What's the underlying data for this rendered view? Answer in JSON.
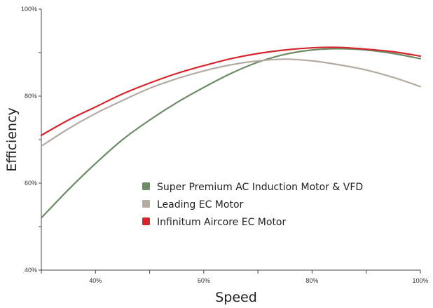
{
  "chart_data": {
    "type": "line",
    "xlabel": "Speed",
    "ylabel": "Efficiency",
    "xlim": [
      30,
      100
    ],
    "ylim": [
      40,
      100
    ],
    "x_ticks": [
      40,
      60,
      80,
      100
    ],
    "x_tick_labels": [
      "40%",
      "60%",
      "80%",
      "100%"
    ],
    "y_ticks": [
      40,
      60,
      80,
      100
    ],
    "y_tick_labels": [
      "40%",
      "60%",
      "80%",
      "100%"
    ],
    "grid": false,
    "legend_position": "center-right",
    "series": [
      {
        "name": "Super Premium AC Induction Motor & VFD",
        "color": "#6d8c66",
        "x": [
          30,
          35,
          40,
          45,
          50,
          55,
          60,
          65,
          70,
          75,
          80,
          85,
          90,
          95,
          100
        ],
        "y": [
          52,
          58.5,
          64.5,
          70,
          74.5,
          78.5,
          82,
          85.2,
          87.8,
          89.6,
          90.6,
          90.9,
          90.6,
          89.8,
          88.6
        ]
      },
      {
        "name": "Leading EC Motor",
        "color": "#b4aca3",
        "x": [
          30,
          35,
          40,
          45,
          50,
          55,
          60,
          65,
          70,
          75,
          80,
          85,
          90,
          95,
          100
        ],
        "y": [
          68.5,
          72.5,
          76,
          79,
          81.8,
          84,
          85.8,
          87.2,
          88.1,
          88.5,
          88.1,
          87.2,
          86,
          84.3,
          82.2
        ]
      },
      {
        "name": "Infinitum Aircore EC Motor",
        "color": "#d7262b",
        "x": [
          30,
          35,
          40,
          45,
          50,
          55,
          60,
          65,
          70,
          75,
          80,
          85,
          90,
          95,
          100
        ],
        "y": [
          71,
          74.5,
          77.5,
          80.5,
          83,
          85.2,
          87,
          88.6,
          89.8,
          90.6,
          91.1,
          91.2,
          90.8,
          90.2,
          89.2
        ]
      }
    ]
  }
}
